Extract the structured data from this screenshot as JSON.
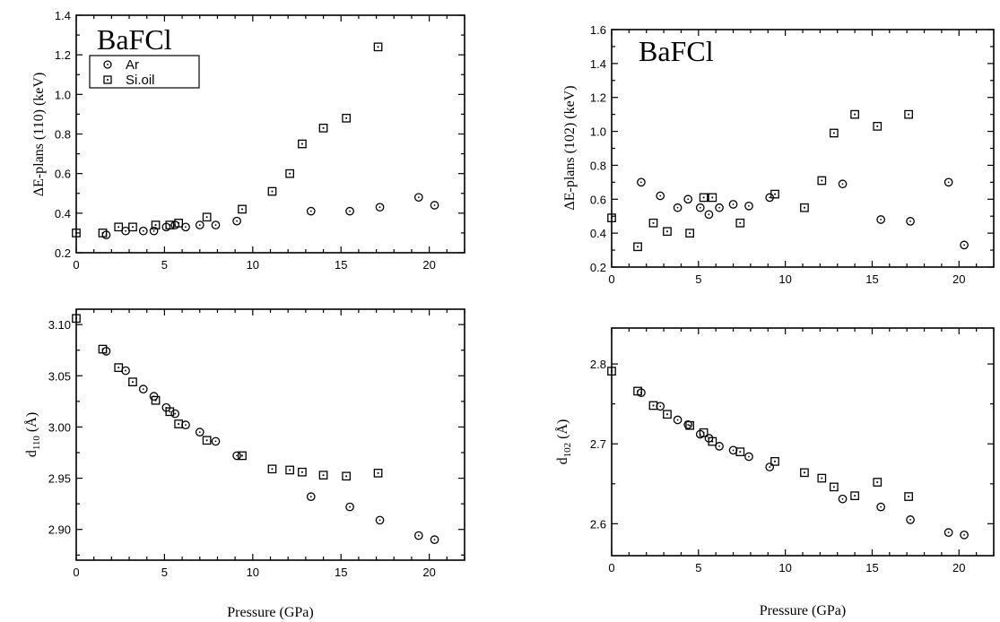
{
  "chart_data": [
    {
      "id": "p1",
      "type": "scatter",
      "title": "BaFCl",
      "xlabel": "",
      "ylabel": "ΔE-plans (110) (keV)",
      "xlim": [
        0,
        22
      ],
      "ylim": [
        0.2,
        1.4
      ],
      "xticks": [
        0,
        5,
        10,
        15,
        20
      ],
      "yticks": [
        0.2,
        0.4,
        0.6,
        0.8,
        1.0,
        1.2,
        1.4
      ],
      "ytick_format": 1,
      "legend": {
        "placement": "top-left",
        "entries": [
          {
            "name": "Ar",
            "marker": "circle"
          },
          {
            "name": "Si.oil",
            "marker": "square"
          }
        ]
      },
      "series": [
        {
          "name": "Ar",
          "marker": "circle",
          "points": [
            [
              1.7,
              0.29
            ],
            [
              2.8,
              0.31
            ],
            [
              3.8,
              0.31
            ],
            [
              4.4,
              0.31
            ],
            [
              5.1,
              0.33
            ],
            [
              5.6,
              0.34
            ],
            [
              6.2,
              0.33
            ],
            [
              7.0,
              0.34
            ],
            [
              7.9,
              0.34
            ],
            [
              9.1,
              0.36
            ],
            [
              13.3,
              0.41
            ],
            [
              15.5,
              0.41
            ],
            [
              17.2,
              0.43
            ],
            [
              19.4,
              0.48
            ],
            [
              20.3,
              0.44
            ]
          ]
        },
        {
          "name": "Si.oil",
          "marker": "square",
          "points": [
            [
              0,
              0.3
            ],
            [
              1.5,
              0.3
            ],
            [
              2.4,
              0.33
            ],
            [
              3.2,
              0.33
            ],
            [
              4.5,
              0.34
            ],
            [
              5.3,
              0.34
            ],
            [
              5.8,
              0.35
            ],
            [
              7.4,
              0.38
            ],
            [
              9.4,
              0.42
            ],
            [
              11.1,
              0.51
            ],
            [
              12.1,
              0.6
            ],
            [
              12.8,
              0.75
            ],
            [
              14.0,
              0.83
            ],
            [
              15.3,
              0.88
            ],
            [
              17.1,
              1.24
            ]
          ]
        }
      ]
    },
    {
      "id": "p2",
      "type": "scatter",
      "title": "BaFCl",
      "xlabel": "",
      "ylabel": "ΔE-plans (102) (keV)",
      "xlim": [
        0,
        22
      ],
      "ylim": [
        0.2,
        1.6
      ],
      "xticks": [
        0,
        5,
        10,
        15,
        20
      ],
      "yticks": [
        0.2,
        0.4,
        0.6,
        0.8,
        1.0,
        1.2,
        1.4,
        1.6
      ],
      "ytick_format": 1,
      "series": [
        {
          "name": "Ar",
          "marker": "circle",
          "points": [
            [
              1.7,
              0.7
            ],
            [
              2.8,
              0.62
            ],
            [
              3.8,
              0.55
            ],
            [
              4.4,
              0.6
            ],
            [
              5.1,
              0.55
            ],
            [
              5.6,
              0.51
            ],
            [
              6.2,
              0.55
            ],
            [
              7.0,
              0.57
            ],
            [
              7.9,
              0.56
            ],
            [
              9.1,
              0.61
            ],
            [
              13.3,
              0.69
            ],
            [
              15.5,
              0.48
            ],
            [
              17.2,
              0.47
            ],
            [
              19.4,
              0.7
            ],
            [
              20.3,
              0.33
            ]
          ]
        },
        {
          "name": "Si.oil",
          "marker": "square",
          "points": [
            [
              0,
              0.49
            ],
            [
              1.5,
              0.32
            ],
            [
              2.4,
              0.46
            ],
            [
              3.2,
              0.41
            ],
            [
              4.5,
              0.4
            ],
            [
              5.3,
              0.61
            ],
            [
              5.8,
              0.61
            ],
            [
              7.4,
              0.46
            ],
            [
              9.4,
              0.63
            ],
            [
              11.1,
              0.55
            ],
            [
              12.1,
              0.71
            ],
            [
              12.8,
              0.99
            ],
            [
              14.0,
              1.1
            ],
            [
              15.3,
              1.03
            ],
            [
              17.1,
              1.1
            ]
          ]
        }
      ]
    },
    {
      "id": "p3",
      "type": "scatter",
      "xlabel": "Pressure (GPa)",
      "ylabel": "d",
      "ylabel_sub": "110",
      "ylabel_unit": "(Å)",
      "xlim": [
        0,
        22
      ],
      "ylim": [
        2.87,
        3.115
      ],
      "xticks": [
        0,
        5,
        10,
        15,
        20
      ],
      "yticks": [
        2.9,
        2.95,
        3.0,
        3.05,
        3.1
      ],
      "ytick_format": 2,
      "series": [
        {
          "name": "Ar",
          "marker": "circle",
          "points": [
            [
              1.7,
              3.074
            ],
            [
              2.8,
              3.055
            ],
            [
              3.8,
              3.037
            ],
            [
              4.4,
              3.03
            ],
            [
              5.1,
              3.019
            ],
            [
              5.6,
              3.013
            ],
            [
              6.2,
              3.002
            ],
            [
              7.0,
              2.995
            ],
            [
              7.9,
              2.986
            ],
            [
              9.1,
              2.972
            ],
            [
              13.3,
              2.932
            ],
            [
              15.5,
              2.922
            ],
            [
              17.2,
              2.909
            ],
            [
              19.4,
              2.894
            ],
            [
              20.3,
              2.89
            ]
          ]
        },
        {
          "name": "Si.oil",
          "marker": "square",
          "points": [
            [
              0,
              3.106
            ],
            [
              1.5,
              3.076
            ],
            [
              2.4,
              3.058
            ],
            [
              3.2,
              3.044
            ],
            [
              4.5,
              3.026
            ],
            [
              5.3,
              3.015
            ],
            [
              5.8,
              3.003
            ],
            [
              7.4,
              2.987
            ],
            [
              9.4,
              2.972
            ],
            [
              11.1,
              2.959
            ],
            [
              12.1,
              2.958
            ],
            [
              12.8,
              2.956
            ],
            [
              14.0,
              2.953
            ],
            [
              15.3,
              2.952
            ],
            [
              17.1,
              2.955
            ]
          ]
        }
      ]
    },
    {
      "id": "p4",
      "type": "scatter",
      "xlabel": "Pressure (GPa)",
      "ylabel": "d",
      "ylabel_sub": "102",
      "ylabel_unit": "(Å)",
      "xlim": [
        0,
        22
      ],
      "ylim": [
        2.56,
        2.845
      ],
      "xticks": [
        0,
        5,
        10,
        15,
        20
      ],
      "yticks": [
        2.6,
        2.7,
        2.8
      ],
      "ytick_format": 1,
      "series": [
        {
          "name": "Ar",
          "marker": "circle",
          "points": [
            [
              1.7,
              2.764
            ],
            [
              2.8,
              2.747
            ],
            [
              3.8,
              2.73
            ],
            [
              4.4,
              2.724
            ],
            [
              5.1,
              2.712
            ],
            [
              5.6,
              2.707
            ],
            [
              6.2,
              2.697
            ],
            [
              7.0,
              2.692
            ],
            [
              7.9,
              2.684
            ],
            [
              9.1,
              2.671
            ],
            [
              13.3,
              2.631
            ],
            [
              15.5,
              2.621
            ],
            [
              17.2,
              2.605
            ],
            [
              19.4,
              2.589
            ],
            [
              20.3,
              2.586
            ]
          ]
        },
        {
          "name": "Si.oil",
          "marker": "square",
          "points": [
            [
              0,
              2.791
            ],
            [
              1.5,
              2.766
            ],
            [
              2.4,
              2.748
            ],
            [
              3.2,
              2.737
            ],
            [
              4.5,
              2.723
            ],
            [
              5.3,
              2.714
            ],
            [
              5.8,
              2.703
            ],
            [
              7.4,
              2.69
            ],
            [
              9.4,
              2.678
            ],
            [
              11.1,
              2.664
            ],
            [
              12.1,
              2.657
            ],
            [
              12.8,
              2.646
            ],
            [
              14.0,
              2.635
            ],
            [
              15.3,
              2.652
            ],
            [
              17.1,
              2.634
            ]
          ]
        }
      ]
    }
  ]
}
